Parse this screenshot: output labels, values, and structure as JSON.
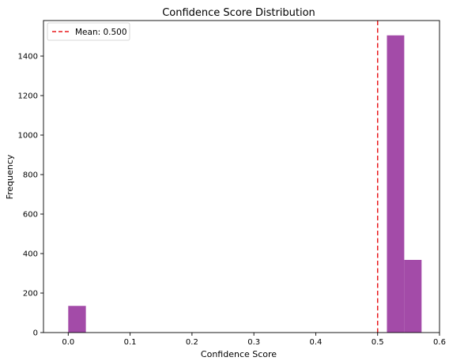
{
  "chart_data": {
    "type": "bar",
    "title": "Confidence Score Distribution",
    "xlabel": "Confidence Score",
    "ylabel": "Frequency",
    "xlim": [
      -0.04,
      0.6
    ],
    "ylim": [
      0,
      1580
    ],
    "xticks": [
      0.0,
      0.1,
      0.2,
      0.3,
      0.4,
      0.5,
      0.6
    ],
    "xtick_labels": [
      "0.0",
      "0.1",
      "0.2",
      "0.3",
      "0.4",
      "0.5",
      "0.6"
    ],
    "yticks": [
      0,
      200,
      400,
      600,
      800,
      1000,
      1200,
      1400
    ],
    "ytick_labels": [
      "0",
      "200",
      "400",
      "600",
      "800",
      "1000",
      "1200",
      "1400"
    ],
    "bins": [
      {
        "x0": 0.0,
        "x1": 0.0285,
        "count": 135
      },
      {
        "x0": 0.0285,
        "x1": 0.057,
        "count": 0
      },
      {
        "x0": 0.057,
        "x1": 0.0855,
        "count": 0
      },
      {
        "x0": 0.0855,
        "x1": 0.114,
        "count": 0
      },
      {
        "x0": 0.114,
        "x1": 0.1425,
        "count": 0
      },
      {
        "x0": 0.1425,
        "x1": 0.171,
        "count": 0
      },
      {
        "x0": 0.171,
        "x1": 0.1995,
        "count": 0
      },
      {
        "x0": 0.1995,
        "x1": 0.228,
        "count": 0
      },
      {
        "x0": 0.228,
        "x1": 0.2565,
        "count": 0
      },
      {
        "x0": 0.2565,
        "x1": 0.285,
        "count": 0
      },
      {
        "x0": 0.285,
        "x1": 0.3135,
        "count": 0
      },
      {
        "x0": 0.3135,
        "x1": 0.342,
        "count": 0
      },
      {
        "x0": 0.342,
        "x1": 0.3705,
        "count": 0
      },
      {
        "x0": 0.3705,
        "x1": 0.399,
        "count": 0
      },
      {
        "x0": 0.399,
        "x1": 0.4275,
        "count": 0
      },
      {
        "x0": 0.4275,
        "x1": 0.456,
        "count": 0
      },
      {
        "x0": 0.456,
        "x1": 0.4845,
        "count": 0
      },
      {
        "x0": 0.4845,
        "x1": 0.513,
        "count": 0
      },
      {
        "x0": 0.515,
        "x1": 0.543,
        "count": 1505
      },
      {
        "x0": 0.543,
        "x1": 0.571,
        "count": 368
      }
    ],
    "bar_color": "#a34ba8",
    "mean_line": {
      "x": 0.5,
      "label": "Mean: 0.500",
      "color": "#e8181b",
      "style": "dashed"
    },
    "legend_position": "top-left",
    "grid": false
  }
}
